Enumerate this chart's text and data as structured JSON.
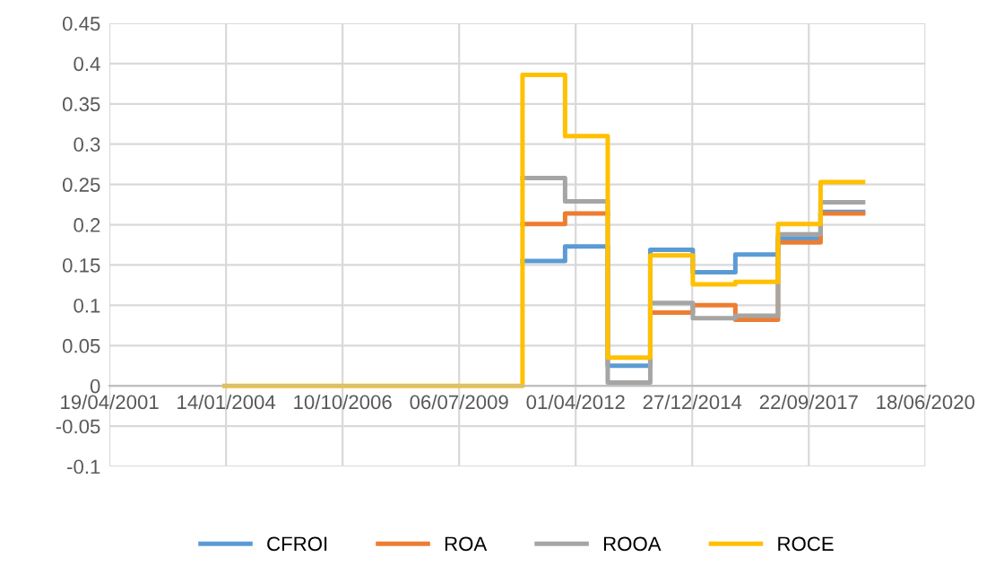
{
  "chart_data": {
    "type": "step",
    "x": [
      "2004-01-01",
      "2011-01-01",
      "2012-01-01",
      "2013-01-01",
      "2014-01-01",
      "2015-01-01",
      "2016-01-01",
      "2017-01-01",
      "2018-01-01",
      "2019-01-01"
    ],
    "series": [
      {
        "name": "CFROI",
        "color": "#5b9bd5",
        "values": [
          null,
          0.155,
          0.173,
          0.025,
          0.169,
          0.141,
          0.163,
          0.183,
          0.216,
          0.216
        ]
      },
      {
        "name": "ROA",
        "color": "#ed7d31",
        "values": [
          null,
          0.201,
          0.214,
          null,
          0.091,
          0.1,
          0.082,
          0.178,
          0.214,
          0.214
        ]
      },
      {
        "name": "ROOA",
        "color": "#a5a5a5",
        "values": [
          null,
          0.258,
          0.229,
          0.004,
          0.103,
          0.084,
          0.087,
          0.188,
          0.228,
          0.228
        ]
      },
      {
        "name": "ROCE",
        "color": "#ffc000",
        "values": [
          0,
          0.386,
          0.31,
          0.035,
          0.162,
          0.126,
          0.129,
          0.201,
          0.253,
          0.253
        ]
      }
    ],
    "xlim": [
      "2001-04-19",
      "2020-06-18"
    ],
    "xticks": [
      {
        "value": "2001-04-19",
        "label": "19/04/2001"
      },
      {
        "value": "2004-01-14",
        "label": "14/01/2004"
      },
      {
        "value": "2006-10-10",
        "label": "10/10/2006"
      },
      {
        "value": "2009-07-06",
        "label": "06/07/2009"
      },
      {
        "value": "2012-04-01",
        "label": "01/04/2012"
      },
      {
        "value": "2014-12-27",
        "label": "27/12/2014"
      },
      {
        "value": "2017-09-22",
        "label": "22/09/2017"
      },
      {
        "value": "2020-06-18",
        "label": "18/06/2020"
      }
    ],
    "ylim": [
      -0.1,
      0.45
    ],
    "yticks": [
      -0.1,
      -0.05,
      0,
      0.05,
      0.1,
      0.15,
      0.2,
      0.25,
      0.3,
      0.35,
      0.4,
      0.45
    ],
    "grid": true,
    "legend": "bottom"
  }
}
